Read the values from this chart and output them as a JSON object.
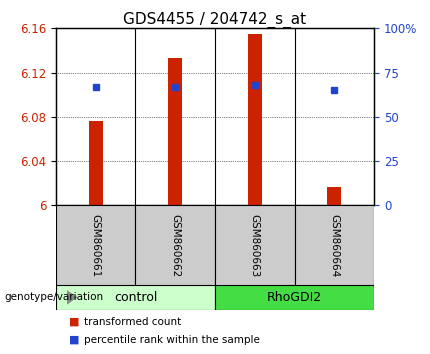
{
  "title": "GDS4455 / 204742_s_at",
  "samples": [
    "GSM860661",
    "GSM860662",
    "GSM860663",
    "GSM860664"
  ],
  "transformed_counts": [
    6.076,
    6.133,
    6.155,
    6.017
  ],
  "percentile_ranks": [
    67,
    67,
    68,
    65
  ],
  "ylim_left": [
    6.0,
    6.16
  ],
  "ylim_right": [
    0,
    100
  ],
  "yticks_left": [
    6.0,
    6.04,
    6.08,
    6.12,
    6.16
  ],
  "yticks_right": [
    0,
    25,
    50,
    75,
    100
  ],
  "ytick_labels_left": [
    "6",
    "6.04",
    "6.08",
    "6.12",
    "6.16"
  ],
  "ytick_labels_right": [
    "0",
    "25",
    "50",
    "75",
    "100%"
  ],
  "bar_color": "#cc2200",
  "dot_color": "#2244cc",
  "group_colors_control": "#ccffcc",
  "group_colors_rhodgi2": "#44dd44",
  "legend_label_red": "transformed count",
  "legend_label_blue": "percentile rank within the sample",
  "ylabel_left_color": "#cc2200",
  "ylabel_right_color": "#2244cc",
  "bar_width": 0.18,
  "title_fontsize": 11,
  "tick_fontsize": 8.5,
  "sample_label_fontsize": 7.5,
  "group_label_fontsize": 9
}
